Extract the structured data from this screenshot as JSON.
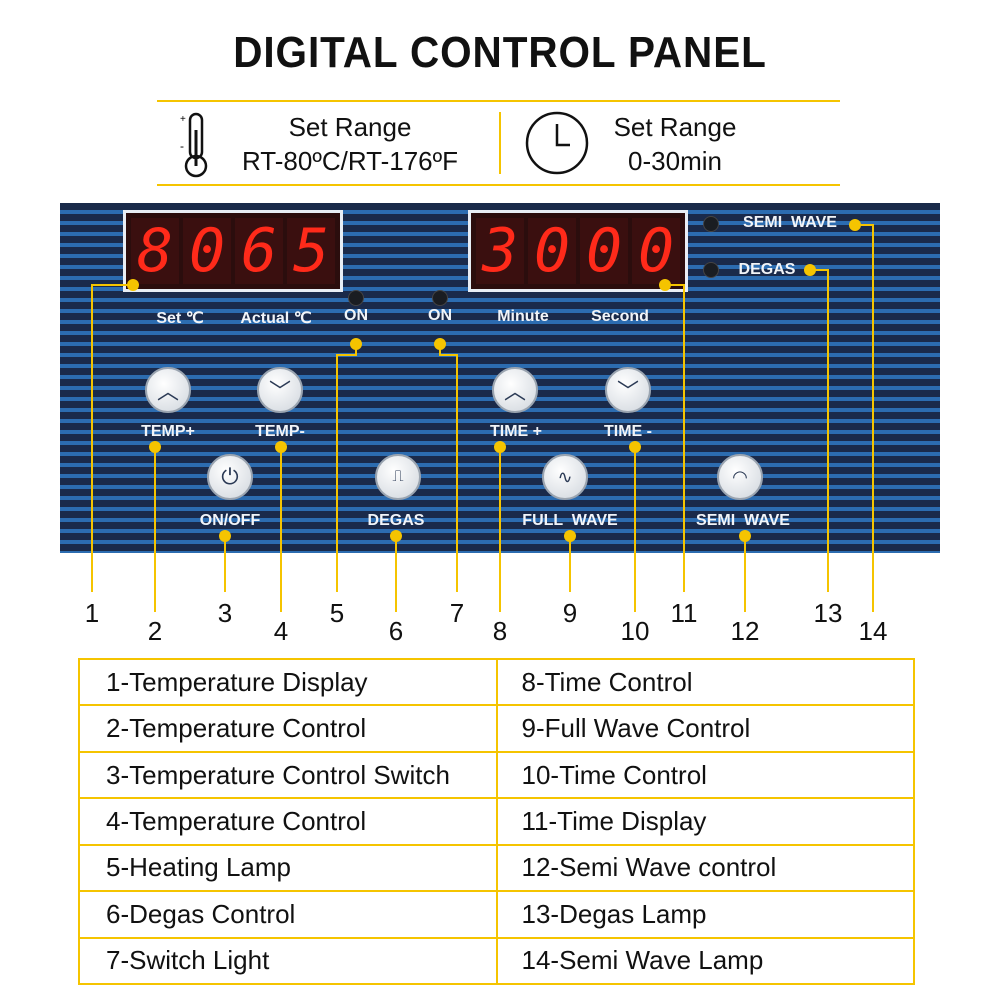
{
  "title": "DIGITAL CONTROL PANEL",
  "spec": {
    "temp": {
      "label": "Set Range",
      "value": "RT-80ºC/RT-176ºF",
      "icon": "thermometer-icon"
    },
    "time": {
      "label": "Set Range",
      "value": "0-30min",
      "icon": "clock-icon"
    }
  },
  "panel": {
    "temp_display": {
      "set": [
        "8",
        "0"
      ],
      "actual": [
        "6",
        "5"
      ],
      "set_label": "Set ℃",
      "actual_label": "Actual ℃"
    },
    "time_display": {
      "minute": [
        "3",
        "0"
      ],
      "second": [
        "0",
        "0"
      ],
      "minute_label": "Minute",
      "second_label": "Second"
    },
    "heat_lamp_label": "ON",
    "switch_lamp_label": "ON",
    "semi_wave_lamp_label": "SEMI  WAVE",
    "degas_lamp_label": "DEGAS",
    "buttons": {
      "temp_up": "TEMP+",
      "temp_down": "TEMP-",
      "time_up": "TIME +",
      "time_down": "TIME -",
      "power": "ON/OFF",
      "degas": "DEGAS",
      "full_wave": "FULL  WAVE",
      "semi_wave": "SEMI  WAVE"
    }
  },
  "callouts": [
    "1",
    "2",
    "3",
    "4",
    "5",
    "6",
    "7",
    "8",
    "9",
    "10",
    "11",
    "12",
    "13",
    "14"
  ],
  "legend": [
    [
      "1-Temperature Display",
      "8-Time Control"
    ],
    [
      "2-Temperature Control",
      "9-Full Wave Control"
    ],
    [
      "3-Temperature Control Switch",
      "10-Time Control"
    ],
    [
      "4-Temperature Control",
      "11-Time Display"
    ],
    [
      "5-Heating Lamp",
      "12-Semi Wave control"
    ],
    [
      "6-Degas Control",
      "13-Degas Lamp"
    ],
    [
      "7-Switch Light",
      "14-Semi Wave Lamp"
    ]
  ],
  "colors": {
    "accent": "#f5c400",
    "panel": "#1a2a4a",
    "led": "#ff2a1a"
  }
}
